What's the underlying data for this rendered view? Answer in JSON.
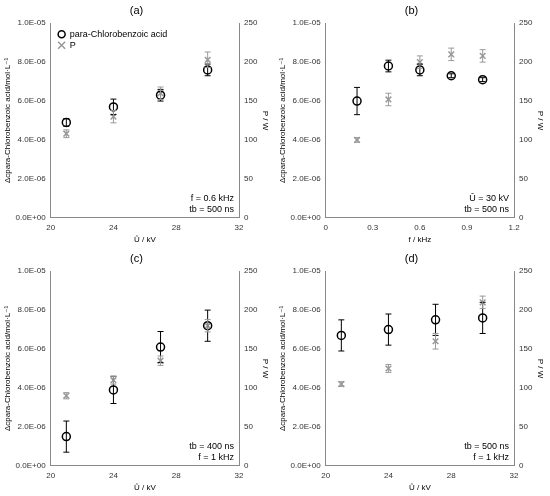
{
  "chart_data": [
    {
      "type": "scatter",
      "title": "(a)",
      "xlabel": "Û / kV",
      "ylabel": "Δcpara-Chlorobenzoic acid/mol·L⁻¹",
      "y2label": "P / W",
      "xlim": [
        20,
        32
      ],
      "xticks": [
        20,
        24,
        28,
        32
      ],
      "ylim": [
        0,
        1e-05
      ],
      "yticks": [
        {
          "value": 0,
          "label": "0.0E+00"
        },
        {
          "value": 2e-06,
          "label": "2.0E-06"
        },
        {
          "value": 4e-06,
          "label": "4.0E-06"
        },
        {
          "value": 6e-06,
          "label": "6.0E-06"
        },
        {
          "value": 8e-06,
          "label": "8.0E-06"
        },
        {
          "value": 1e-05,
          "label": "1.0E-05"
        }
      ],
      "y2lim": [
        0,
        250
      ],
      "y2ticks": [
        0,
        50,
        100,
        150,
        200,
        250
      ],
      "x": [
        21,
        24,
        27,
        30
      ],
      "series": [
        {
          "name": "para-Chlorobenzoic acid",
          "color": "#000000",
          "marker": "circle",
          "values": [
            4.9e-06,
            5.7e-06,
            6.3e-06,
            7.6e-06
          ],
          "errors": [
            2e-07,
            4e-07,
            3e-07,
            3e-07
          ]
        },
        {
          "name": "P",
          "color": "#999999",
          "marker": "cross",
          "axis": "y2",
          "values": [
            108,
            130,
            160,
            203
          ],
          "errors": [
            5,
            8,
            8,
            10
          ]
        }
      ],
      "annotations": [
        "f = 0.6 kHz",
        "tb = 500 ns"
      ],
      "legend": "upper left",
      "grid": false
    },
    {
      "type": "scatter",
      "title": "(b)",
      "xlabel": "f / kHz",
      "ylabel": "Δcpara-Chlorobenzoic acid/mol·L⁻¹",
      "y2label": "P / W",
      "xlim": [
        0,
        1.2
      ],
      "xticks": [
        0,
        0.3,
        0.6,
        0.9,
        1.2
      ],
      "ylim": [
        0,
        1e-05
      ],
      "yticks": [
        {
          "value": 0,
          "label": "0.0E+00"
        },
        {
          "value": 2e-06,
          "label": "2.0E-06"
        },
        {
          "value": 4e-06,
          "label": "4.0E-06"
        },
        {
          "value": 6e-06,
          "label": "6.0E-06"
        },
        {
          "value": 8e-06,
          "label": "8.0E-06"
        },
        {
          "value": 1e-05,
          "label": "1.0E-05"
        }
      ],
      "y2lim": [
        0,
        250
      ],
      "y2ticks": [
        0,
        50,
        100,
        150,
        200,
        250
      ],
      "x": [
        0.2,
        0.4,
        0.6,
        0.8,
        1.0
      ],
      "series": [
        {
          "color": "#000000",
          "marker": "circle",
          "values": [
            6e-06,
            7.8e-06,
            7.6e-06,
            7.3e-06,
            7.1e-06
          ],
          "errors": [
            7e-07,
            3e-07,
            3e-07,
            1e-07,
            1e-07
          ]
        },
        {
          "color": "#999999",
          "marker": "cross",
          "axis": "y2",
          "values": [
            100,
            152,
            200,
            210,
            208
          ],
          "errors": [
            3,
            8,
            8,
            8,
            8
          ]
        }
      ],
      "annotations": [
        "Û = 30 kV",
        "tb = 500 ns"
      ],
      "grid": false
    },
    {
      "type": "scatter",
      "title": "(c)",
      "xlabel": "Û / kV",
      "ylabel": "Δcpara-Chlorobenzoic acid/mol·L⁻¹",
      "y2label": "P / W",
      "xlim": [
        20,
        32
      ],
      "xticks": [
        20,
        24,
        28,
        32
      ],
      "ylim": [
        0,
        1e-05
      ],
      "yticks": [
        {
          "value": 0,
          "label": "0.0E+00"
        },
        {
          "value": 2e-06,
          "label": "2.0E-06"
        },
        {
          "value": 4e-06,
          "label": "4.0E-06"
        },
        {
          "value": 6e-06,
          "label": "6.0E-06"
        },
        {
          "value": 8e-06,
          "label": "8.0E-06"
        },
        {
          "value": 1e-05,
          "label": "1.0E-05"
        }
      ],
      "y2lim": [
        0,
        250
      ],
      "y2ticks": [
        0,
        50,
        100,
        150,
        200,
        250
      ],
      "x": [
        21,
        24,
        27,
        30
      ],
      "series": [
        {
          "color": "#000000",
          "marker": "circle",
          "values": [
            1.5e-06,
            3.9e-06,
            6.1e-06,
            7.2e-06
          ],
          "errors": [
            8e-07,
            7e-07,
            8e-07,
            8e-07
          ]
        },
        {
          "color": "#999999",
          "marker": "cross",
          "axis": "y2",
          "values": [
            90,
            110,
            135,
            180
          ],
          "errors": [
            4,
            5,
            6,
            8
          ]
        }
      ],
      "annotations": [
        "tb = 400 ns",
        "f = 1 kHz"
      ],
      "grid": false
    },
    {
      "type": "scatter",
      "title": "(d)",
      "xlabel": "Û / kV",
      "ylabel": "Δcpara-Chlorobenzoic acid/mol·L⁻¹",
      "y2label": "P / W",
      "xlim": [
        20,
        32
      ],
      "xticks": [
        20,
        24,
        28,
        32
      ],
      "ylim": [
        0,
        1e-05
      ],
      "yticks": [
        {
          "value": 0,
          "label": "0.0E+00"
        },
        {
          "value": 2e-06,
          "label": "2.0E-06"
        },
        {
          "value": 4e-06,
          "label": "4.0E-06"
        },
        {
          "value": 6e-06,
          "label": "6.0E-06"
        },
        {
          "value": 8e-06,
          "label": "8.0E-06"
        },
        {
          "value": 1e-05,
          "label": "1.0E-05"
        }
      ],
      "y2lim": [
        0,
        250
      ],
      "y2ticks": [
        0,
        50,
        100,
        150,
        200,
        250
      ],
      "x": [
        21,
        24,
        27,
        30
      ],
      "series": [
        {
          "color": "#000000",
          "marker": "circle",
          "values": [
            6.7e-06,
            7e-06,
            7.5e-06,
            7.6e-06
          ],
          "errors": [
            8e-07,
            8e-07,
            8e-07,
            8e-07
          ]
        },
        {
          "color": "#999999",
          "marker": "cross",
          "axis": "y2",
          "values": [
            105,
            125,
            160,
            210
          ],
          "errors": [
            3,
            5,
            10,
            8
          ]
        }
      ],
      "annotations": [
        "tb = 500 ns",
        "f = 1 kHz"
      ],
      "grid": false
    }
  ]
}
